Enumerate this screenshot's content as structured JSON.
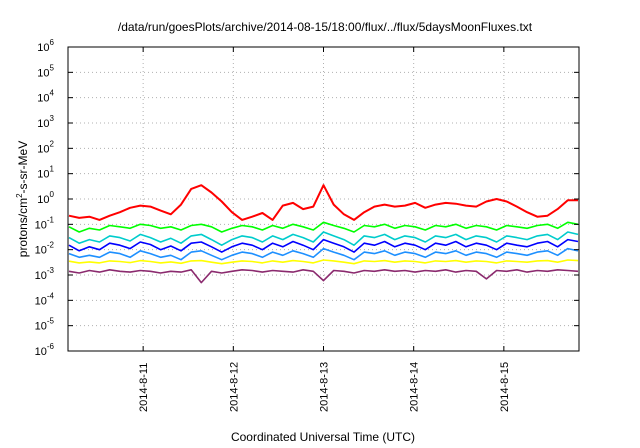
{
  "chart_data": {
    "type": "line",
    "title": "/data/run/goesPlots/archive/2014-08-15/18:00/flux/../flux/5daysMoonFluxes.txt",
    "xlabel": "Coordinated Universal Time (UTC)",
    "ylabel": "protons/cm2-s-sr-MeV",
    "ylabel_parts": [
      "protons/cm",
      "2",
      "-s-sr-MeV"
    ],
    "y_scale": "log",
    "ylim_exponents": [
      -6,
      6
    ],
    "y_ticks": [
      {
        "base": "10",
        "exp": "-6"
      },
      {
        "base": "10",
        "exp": "-5"
      },
      {
        "base": "10",
        "exp": "-4"
      },
      {
        "base": "10",
        "exp": "-3"
      },
      {
        "base": "10",
        "exp": "-2"
      },
      {
        "base": "10",
        "exp": "-1"
      },
      {
        "base": "10",
        "exp": "0"
      },
      {
        "base": "10",
        "exp": "1"
      },
      {
        "base": "10",
        "exp": "2"
      },
      {
        "base": "10",
        "exp": "3"
      },
      {
        "base": "10",
        "exp": "4"
      },
      {
        "base": "10",
        "exp": "5"
      },
      {
        "base": "10",
        "exp": "6"
      }
    ],
    "xlim": [
      "2014-08-10T04:00",
      "2014-08-15T20:00"
    ],
    "x_ticks": [
      {
        "label": "2014-8-11",
        "t": "2014-08-11T00:00"
      },
      {
        "label": "2014-8-12",
        "t": "2014-08-12T00:00"
      },
      {
        "label": "2014-8-13",
        "t": "2014-08-13T00:00"
      },
      {
        "label": "2014-8-14",
        "t": "2014-08-14T00:00"
      },
      {
        "label": "2014-8-15",
        "t": "2014-08-15T00:00"
      }
    ],
    "grid": true,
    "legend": "none",
    "series": [
      {
        "color": "#ff0000",
        "values": [
          0.22,
          0.18,
          0.2,
          0.15,
          0.22,
          0.3,
          0.45,
          0.55,
          0.5,
          0.35,
          0.25,
          0.6,
          2.5,
          3.5,
          1.8,
          0.8,
          0.3,
          0.15,
          0.2,
          0.28,
          0.15,
          0.55,
          0.7,
          0.4,
          0.5,
          3.5,
          0.6,
          0.25,
          0.15,
          0.3,
          0.5,
          0.6,
          0.5,
          0.55,
          0.7,
          0.45,
          0.6,
          0.7,
          0.65,
          0.55,
          0.5,
          0.8,
          1.0,
          0.8,
          0.5,
          0.3,
          0.2,
          0.22,
          0.4,
          0.9,
          0.9
        ]
      },
      {
        "color": "#00ff00",
        "values": [
          0.08,
          0.05,
          0.07,
          0.06,
          0.09,
          0.08,
          0.07,
          0.1,
          0.09,
          0.07,
          0.08,
          0.06,
          0.09,
          0.1,
          0.08,
          0.05,
          0.07,
          0.09,
          0.08,
          0.06,
          0.09,
          0.07,
          0.1,
          0.08,
          0.06,
          0.12,
          0.09,
          0.07,
          0.05,
          0.09,
          0.08,
          0.1,
          0.07,
          0.09,
          0.08,
          0.06,
          0.09,
          0.08,
          0.1,
          0.07,
          0.09,
          0.08,
          0.06,
          0.09,
          0.08,
          0.07,
          0.09,
          0.1,
          0.07,
          0.12,
          0.1
        ]
      },
      {
        "color": "#00cccc",
        "values": [
          0.03,
          0.018,
          0.025,
          0.02,
          0.035,
          0.03,
          0.022,
          0.04,
          0.03,
          0.02,
          0.028,
          0.018,
          0.035,
          0.04,
          0.025,
          0.015,
          0.025,
          0.035,
          0.03,
          0.02,
          0.035,
          0.025,
          0.04,
          0.03,
          0.02,
          0.05,
          0.035,
          0.025,
          0.015,
          0.035,
          0.03,
          0.04,
          0.025,
          0.035,
          0.03,
          0.02,
          0.035,
          0.03,
          0.04,
          0.025,
          0.035,
          0.03,
          0.02,
          0.035,
          0.03,
          0.025,
          0.035,
          0.04,
          0.025,
          0.05,
          0.04
        ]
      },
      {
        "color": "#0000ff",
        "values": [
          0.015,
          0.009,
          0.013,
          0.01,
          0.018,
          0.015,
          0.011,
          0.02,
          0.016,
          0.01,
          0.014,
          0.009,
          0.018,
          0.02,
          0.013,
          0.008,
          0.013,
          0.018,
          0.015,
          0.01,
          0.018,
          0.013,
          0.021,
          0.015,
          0.01,
          0.025,
          0.018,
          0.013,
          0.008,
          0.018,
          0.015,
          0.021,
          0.013,
          0.018,
          0.015,
          0.01,
          0.018,
          0.015,
          0.021,
          0.013,
          0.018,
          0.015,
          0.01,
          0.018,
          0.015,
          0.013,
          0.018,
          0.021,
          0.013,
          0.025,
          0.021
        ]
      },
      {
        "color": "#1e90ff",
        "values": [
          0.007,
          0.005,
          0.006,
          0.005,
          0.008,
          0.007,
          0.005,
          0.009,
          0.007,
          0.005,
          0.006,
          0.004,
          0.008,
          0.009,
          0.006,
          0.004,
          0.006,
          0.008,
          0.007,
          0.005,
          0.008,
          0.006,
          0.009,
          0.007,
          0.005,
          0.011,
          0.008,
          0.006,
          0.004,
          0.008,
          0.007,
          0.009,
          0.006,
          0.008,
          0.007,
          0.005,
          0.008,
          0.007,
          0.009,
          0.006,
          0.008,
          0.007,
          0.005,
          0.008,
          0.007,
          0.006,
          0.008,
          0.009,
          0.006,
          0.011,
          0.009
        ]
      },
      {
        "color": "#ffff00",
        "values": [
          0.0035,
          0.003,
          0.0033,
          0.003,
          0.0036,
          0.0034,
          0.0031,
          0.0037,
          0.0034,
          0.003,
          0.0033,
          0.0029,
          0.0036,
          0.0037,
          0.0032,
          0.0028,
          0.0032,
          0.0036,
          0.0034,
          0.003,
          0.0036,
          0.0032,
          0.0037,
          0.0034,
          0.003,
          0.0039,
          0.0036,
          0.0032,
          0.0028,
          0.0036,
          0.0034,
          0.0037,
          0.0032,
          0.0036,
          0.0034,
          0.003,
          0.0036,
          0.0034,
          0.0037,
          0.0032,
          0.0036,
          0.0034,
          0.003,
          0.0036,
          0.0034,
          0.0032,
          0.0036,
          0.0037,
          0.0032,
          0.0039,
          0.0037
        ]
      },
      {
        "color": "#8b2a6e",
        "values": [
          0.0014,
          0.0012,
          0.0015,
          0.0013,
          0.0016,
          0.0014,
          0.0013,
          0.0015,
          0.0014,
          0.0012,
          0.0014,
          0.0013,
          0.0016,
          0.0005,
          0.0014,
          0.0012,
          0.0014,
          0.0016,
          0.0015,
          0.0013,
          0.0015,
          0.0014,
          0.0013,
          0.0016,
          0.0014,
          0.0006,
          0.0015,
          0.0014,
          0.0012,
          0.0015,
          0.0014,
          0.0016,
          0.0014,
          0.0015,
          0.0013,
          0.0015,
          0.0014,
          0.0016,
          0.0013,
          0.0015,
          0.0014,
          0.0007,
          0.0015,
          0.0014,
          0.0016,
          0.0013,
          0.0015,
          0.0014,
          0.0016,
          0.0015,
          0.0014
        ]
      }
    ]
  }
}
